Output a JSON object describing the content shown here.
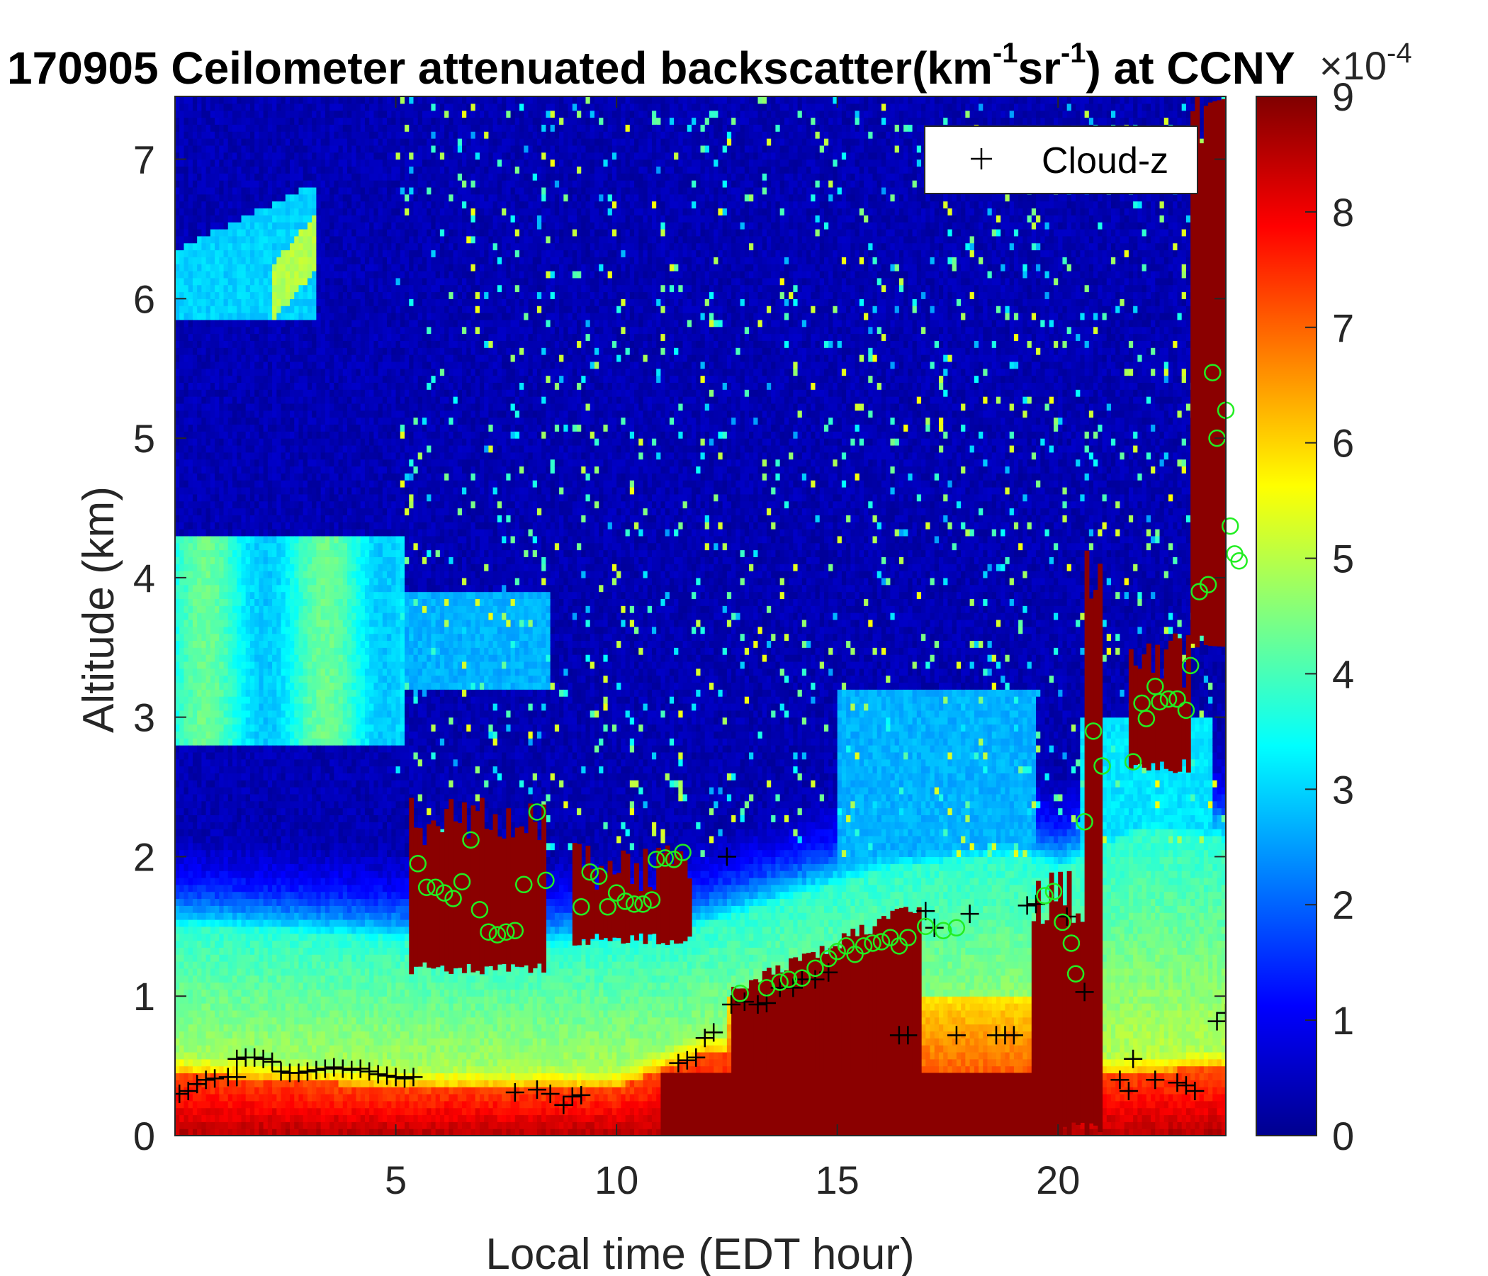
{
  "chart_data": {
    "type": "heatmap",
    "title": {
      "prefix": "170905 Ceilometer attenuated backscatter(km",
      "sup1": "-1",
      "middle": "sr",
      "sup2": "-1",
      "suffix": ") at CCNY"
    },
    "xlabel": "Local time (EDT hour)",
    "ylabel": "Altitude (km)",
    "xlim": [
      0,
      23.8
    ],
    "ylim": [
      0,
      7.45
    ],
    "xticks": [
      5,
      10,
      15,
      20
    ],
    "yticks": [
      0,
      1,
      2,
      3,
      4,
      5,
      6,
      7
    ],
    "colorbar": {
      "colormap": "jet",
      "range": [
        0,
        9
      ],
      "ticks": [
        0,
        1,
        2,
        3,
        4,
        5,
        6,
        7,
        8,
        9
      ],
      "exponent_label": {
        "base": "×10",
        "exp": "-4"
      }
    },
    "legend": {
      "entries": [
        "Cloud-z"
      ],
      "placement": "top-right"
    },
    "cloud_z_points": [
      [
        0.1,
        0.3
      ],
      [
        0.3,
        0.32
      ],
      [
        0.5,
        0.37
      ],
      [
        0.7,
        0.4
      ],
      [
        0.9,
        0.41
      ],
      [
        1.2,
        0.42
      ],
      [
        1.4,
        0.42
      ],
      [
        1.4,
        0.55
      ],
      [
        1.6,
        0.56
      ],
      [
        1.8,
        0.56
      ],
      [
        2.0,
        0.55
      ],
      [
        2.2,
        0.53
      ],
      [
        2.4,
        0.46
      ],
      [
        2.6,
        0.45
      ],
      [
        2.8,
        0.45
      ],
      [
        3.0,
        0.46
      ],
      [
        3.2,
        0.47
      ],
      [
        3.4,
        0.48
      ],
      [
        3.6,
        0.49
      ],
      [
        3.8,
        0.48
      ],
      [
        4.0,
        0.47
      ],
      [
        4.2,
        0.48
      ],
      [
        4.4,
        0.46
      ],
      [
        4.6,
        0.44
      ],
      [
        4.8,
        0.43
      ],
      [
        5.0,
        0.42
      ],
      [
        5.2,
        0.41
      ],
      [
        5.4,
        0.42
      ],
      [
        7.7,
        0.31
      ],
      [
        8.2,
        0.33
      ],
      [
        8.5,
        0.3
      ],
      [
        8.8,
        0.22
      ],
      [
        9.0,
        0.28
      ],
      [
        9.2,
        0.29
      ],
      [
        11.4,
        0.52
      ],
      [
        11.6,
        0.54
      ],
      [
        11.8,
        0.56
      ],
      [
        12.0,
        0.7
      ],
      [
        12.2,
        0.74
      ],
      [
        12.5,
        2.0
      ],
      [
        12.6,
        0.94
      ],
      [
        12.9,
        0.96
      ],
      [
        13.2,
        0.94
      ],
      [
        13.4,
        0.95
      ],
      [
        13.7,
        1.06
      ],
      [
        14.0,
        1.06
      ],
      [
        14.2,
        1.12
      ],
      [
        14.5,
        1.12
      ],
      [
        14.8,
        1.17
      ],
      [
        16.4,
        0.72
      ],
      [
        16.6,
        0.72
      ],
      [
        17.0,
        1.61
      ],
      [
        17.2,
        1.49
      ],
      [
        17.7,
        0.72
      ],
      [
        18.0,
        1.59
      ],
      [
        18.6,
        0.72
      ],
      [
        18.8,
        0.72
      ],
      [
        19.0,
        0.72
      ],
      [
        19.3,
        1.65
      ],
      [
        19.5,
        1.66
      ],
      [
        20.2,
        1.57
      ],
      [
        20.6,
        1.03
      ],
      [
        21.4,
        0.4
      ],
      [
        21.6,
        0.32
      ],
      [
        21.7,
        0.55
      ],
      [
        22.2,
        0.4
      ],
      [
        22.7,
        0.38
      ],
      [
        22.9,
        0.36
      ],
      [
        23.1,
        0.32
      ],
      [
        23.6,
        0.82
      ],
      [
        23.8,
        0.88
      ]
    ],
    "cloud_base_points": [
      [
        5.5,
        1.95
      ],
      [
        5.7,
        1.78
      ],
      [
        5.9,
        1.78
      ],
      [
        6.1,
        1.74
      ],
      [
        6.3,
        1.7
      ],
      [
        6.5,
        1.82
      ],
      [
        6.7,
        2.12
      ],
      [
        6.9,
        1.62
      ],
      [
        7.1,
        1.46
      ],
      [
        7.3,
        1.44
      ],
      [
        7.5,
        1.46
      ],
      [
        7.7,
        1.47
      ],
      [
        7.9,
        1.8
      ],
      [
        8.2,
        2.32
      ],
      [
        8.4,
        1.83
      ],
      [
        9.2,
        1.64
      ],
      [
        9.4,
        1.89
      ],
      [
        9.6,
        1.86
      ],
      [
        9.8,
        1.64
      ],
      [
        10.0,
        1.74
      ],
      [
        10.2,
        1.68
      ],
      [
        10.4,
        1.66
      ],
      [
        10.6,
        1.66
      ],
      [
        10.8,
        1.69
      ],
      [
        10.9,
        1.98
      ],
      [
        11.1,
        1.99
      ],
      [
        11.3,
        1.98
      ],
      [
        11.5,
        2.03
      ],
      [
        12.8,
        1.02
      ],
      [
        13.4,
        1.06
      ],
      [
        13.7,
        1.1
      ],
      [
        13.9,
        1.12
      ],
      [
        14.2,
        1.13
      ],
      [
        14.5,
        1.2
      ],
      [
        14.8,
        1.27
      ],
      [
        15.0,
        1.32
      ],
      [
        15.2,
        1.36
      ],
      [
        15.4,
        1.3
      ],
      [
        15.6,
        1.36
      ],
      [
        15.8,
        1.38
      ],
      [
        16.0,
        1.39
      ],
      [
        16.2,
        1.42
      ],
      [
        16.4,
        1.36
      ],
      [
        16.6,
        1.42
      ],
      [
        17.0,
        1.5
      ],
      [
        17.4,
        1.47
      ],
      [
        17.7,
        1.49
      ],
      [
        19.7,
        1.72
      ],
      [
        19.9,
        1.75
      ],
      [
        20.1,
        1.53
      ],
      [
        20.3,
        1.38
      ],
      [
        20.4,
        1.16
      ],
      [
        20.6,
        2.25
      ],
      [
        20.8,
        2.9
      ],
      [
        21.0,
        2.65
      ],
      [
        21.7,
        2.68
      ],
      [
        21.9,
        3.1
      ],
      [
        22.0,
        2.99
      ],
      [
        22.2,
        3.22
      ],
      [
        22.3,
        3.11
      ],
      [
        22.5,
        3.13
      ],
      [
        22.7,
        3.13
      ],
      [
        22.9,
        3.05
      ],
      [
        23.0,
        3.37
      ],
      [
        23.2,
        3.9
      ],
      [
        23.4,
        3.95
      ],
      [
        23.5,
        5.47
      ],
      [
        23.6,
        5.0
      ],
      [
        23.8,
        5.2
      ],
      [
        23.9,
        4.37
      ],
      [
        24.0,
        4.17
      ],
      [
        24.1,
        4.12
      ]
    ]
  }
}
